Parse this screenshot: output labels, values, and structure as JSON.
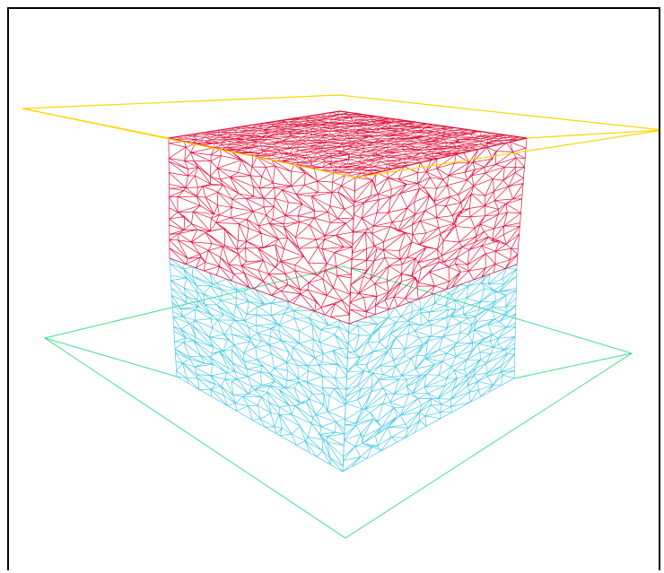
{
  "viewport": {
    "background": "#ffffff",
    "border_color": "#000000"
  },
  "scene": {
    "view": "3d-perspective",
    "render_mode": "wireframe",
    "mesh_type": "tetrahedral/triangular",
    "objects": [
      {
        "name": "upper-plane",
        "shape": "plane-outline",
        "color": "#ffd400"
      },
      {
        "name": "lower-plane",
        "shape": "plane-outline",
        "color": "#40e08a"
      },
      {
        "name": "upper-block",
        "shape": "box-mesh",
        "color": "#e0103a"
      },
      {
        "name": "lower-block",
        "shape": "box-mesh",
        "color": "#45c8e8"
      }
    ]
  }
}
